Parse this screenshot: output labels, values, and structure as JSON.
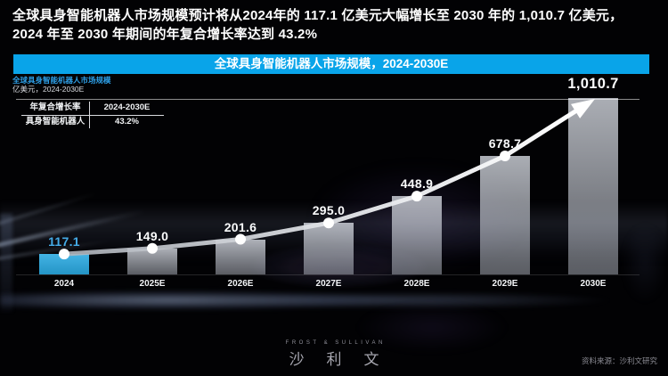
{
  "page": {
    "headline_line1": "全球具身智能机器人市场规模预计将从2024年的 117.1 亿美元大幅增长至 2030 年的 1,010.7 亿美元，",
    "headline_line2": "2024 年至 2030 年期间的年复合增长率达到 43.2%"
  },
  "banner": {
    "title": "全球具身智能机器人市场规模，2024-2030E"
  },
  "chart_header": {
    "title": "全球具身智能机器人市场规模",
    "unit_label": "亿美元，2024-2030E"
  },
  "cagr_table": {
    "header": [
      "年复合增长率",
      "2024-2030E"
    ],
    "rows": [
      [
        "具身智能机器人",
        "43.2%"
      ]
    ]
  },
  "chart_data": {
    "type": "bar",
    "title": "全球具身智能机器人市场规模，2024-2030E",
    "ylabel": "亿美元",
    "categories": [
      "2024",
      "2025E",
      "2026E",
      "2027E",
      "2028E",
      "2029E",
      "2030E"
    ],
    "values": [
      117.1,
      149.0,
      201.6,
      295.0,
      448.9,
      678.7,
      1010.7
    ],
    "value_labels": [
      "117.1",
      "149.0",
      "201.6",
      "295.0",
      "448.9",
      "678.7",
      "1,010.7"
    ],
    "ylim": [
      0,
      1010.7
    ],
    "highlight_index": 0,
    "trend_line": "arrow-up-through-points",
    "cagr_2024_2030E": "43.2%",
    "grid": false,
    "legend_position": "none"
  },
  "colors": {
    "accent_blue": "#09A4E9",
    "highlight_bar": "#29A9E1",
    "value_label_blue": "#45ACE8",
    "chart_title_blue": "#2E9FE6",
    "bar_gray": "#AEB3BC"
  },
  "footer": {
    "logo_top": "FROST & SULLIVAN",
    "logo_main": "沙利文",
    "source": "资料来源：沙利文研究"
  }
}
